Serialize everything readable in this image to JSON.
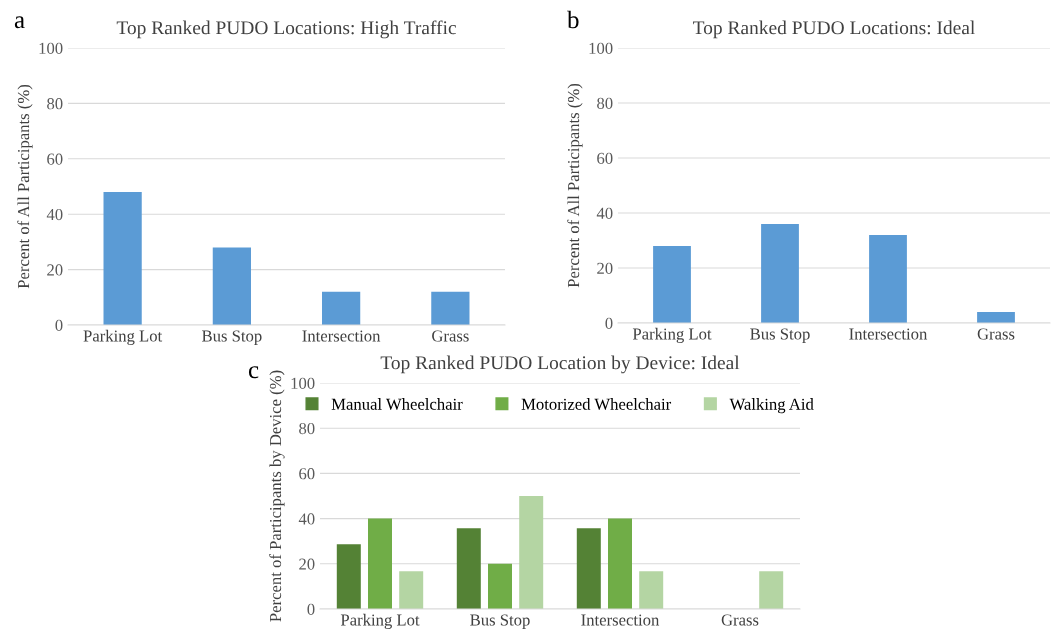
{
  "chart_data": [
    {
      "type": "bar",
      "title": "Top Ranked PUDO Locations: High Traffic",
      "ylabel": "Percent of All Participants (%)",
      "annotations": [
        "a"
      ],
      "categories": [
        "Parking Lot",
        "Bus Stop",
        "Intersection",
        "Grass"
      ],
      "series": [
        {
          "color": "#5b9bd5",
          "values": [
            48,
            28,
            12,
            12
          ]
        }
      ],
      "ylim": [
        0,
        100
      ],
      "yticks": [
        0,
        20,
        40,
        60,
        80,
        100
      ],
      "grid": "y"
    },
    {
      "type": "bar",
      "title": "Top Ranked PUDO Locations: Ideal",
      "ylabel": "Percent of All Participants (%)",
      "annotations": [
        "b"
      ],
      "categories": [
        "Parking Lot",
        "Bus Stop",
        "Intersection",
        "Grass"
      ],
      "series": [
        {
          "color": "#5b9bd5",
          "values": [
            28,
            36,
            32,
            4
          ]
        }
      ],
      "ylim": [
        0,
        100
      ],
      "yticks": [
        0,
        20,
        40,
        60,
        80,
        100
      ],
      "grid": "y"
    },
    {
      "type": "bar",
      "title": "Top Ranked PUDO Location by Device: Ideal",
      "ylabel": "Percent of Participants by Device (%)",
      "annotations": [
        "c"
      ],
      "categories": [
        "Parking Lot",
        "Bus Stop",
        "Intersection",
        "Grass"
      ],
      "series": [
        {
          "name": "Manual Wheelchair",
          "color": "#548235",
          "values": [
            28.6,
            35.7,
            35.7,
            0
          ]
        },
        {
          "name": "Motorized Wheelchair",
          "color": "#70ad47",
          "values": [
            40,
            20,
            40,
            0
          ]
        },
        {
          "name": "Walking Aid",
          "color": "#b4d5a3",
          "values": [
            16.7,
            50,
            16.7,
            16.7
          ]
        }
      ],
      "ylim": [
        0,
        100
      ],
      "yticks": [
        0,
        20,
        40,
        60,
        80,
        100
      ],
      "grid": "y",
      "legend": "top"
    }
  ]
}
